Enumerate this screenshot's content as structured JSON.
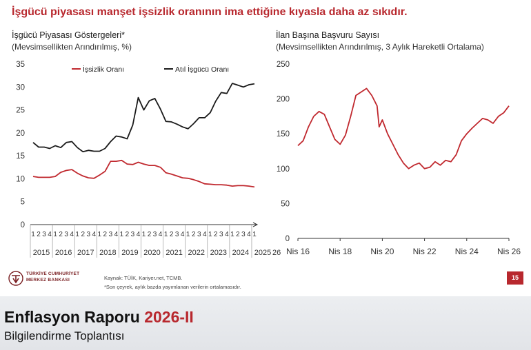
{
  "headline": "İşgücü piyasası manşet işsizlik oranının ima ettiğine kıyasla daha az sıkıdır.",
  "left_chart": {
    "title": "İşgücü Piyasası Göstergeleri*",
    "subtitle": "(Mevsimsellikten Arındırılmış, %)"
  },
  "right_chart": {
    "title": "İlan Başına Başvuru Sayısı",
    "subtitle": "(Mevsimsellikten Arındırılmış, 3 Aylık Hareketli Ortalama)"
  },
  "chart_data": [
    {
      "type": "line",
      "title": "İşgücü Piyasası Göstergeleri*",
      "subtitle": "(Mevsimsellikten Arındırılmış, %)",
      "ylim": [
        0,
        35
      ],
      "yticks": [
        0,
        5,
        10,
        15,
        20,
        25,
        30,
        35
      ],
      "quarter_labels": [
        "1",
        "2",
        "3",
        "4"
      ],
      "years": [
        "2015",
        "2016",
        "2017",
        "2018",
        "2019",
        "2020",
        "2021",
        "2022",
        "2023",
        "2024",
        "2025",
        "26"
      ],
      "last_year_quarters": 1,
      "legend_position": "top",
      "series": [
        {
          "name": "İşsizlik Oranı",
          "color": "#c0282e",
          "values": [
            10.5,
            10.3,
            10.3,
            10.3,
            10.5,
            11.4,
            11.8,
            12.0,
            11.2,
            10.6,
            10.2,
            10.1,
            10.8,
            11.6,
            13.8,
            13.8,
            14.0,
            13.2,
            13.1,
            13.6,
            13.2,
            12.9,
            12.9,
            12.5,
            11.3,
            11.0,
            10.6,
            10.2,
            10.1,
            9.8,
            9.4,
            8.9,
            8.8,
            8.7,
            8.7,
            8.6,
            8.4,
            8.5,
            8.5,
            8.4,
            8.2
          ]
        },
        {
          "name": "Atıl İşgücü Oranı",
          "color": "#1a1a1a",
          "values": [
            17.9,
            16.9,
            16.9,
            16.6,
            17.2,
            16.8,
            17.9,
            18.1,
            16.8,
            15.9,
            16.2,
            16.0,
            16.0,
            16.6,
            18.1,
            19.3,
            19.1,
            18.7,
            21.7,
            27.7,
            25.0,
            27.0,
            27.5,
            25.2,
            22.5,
            22.4,
            21.9,
            21.3,
            20.9,
            22.0,
            23.3,
            23.3,
            24.4,
            26.9,
            28.8,
            28.6,
            30.8,
            30.4,
            30.0,
            30.5,
            30.7
          ]
        }
      ]
    },
    {
      "type": "line",
      "title": "İlan Başına Başvuru Sayısı",
      "subtitle": "(Mevsimsellikten Arındırılmış, 3 Aylık Hareketli Ortalama)",
      "ylim": [
        0,
        250
      ],
      "yticks": [
        0,
        50,
        100,
        150,
        200,
        250
      ],
      "xlim": [
        2016.25,
        2026.25
      ],
      "xticks": [
        {
          "x": 2016.25,
          "label": "Nis 16"
        },
        {
          "x": 2018.25,
          "label": "Nis 18"
        },
        {
          "x": 2020.25,
          "label": "Nis 20"
        },
        {
          "x": 2022.25,
          "label": "Nis 22"
        },
        {
          "x": 2024.25,
          "label": "Nis 24"
        },
        {
          "x": 2026.25,
          "label": "Nis 26"
        }
      ],
      "series": [
        {
          "name": "",
          "color": "#c0282e",
          "x": [
            2016.25,
            2016.5,
            2016.75,
            2017.0,
            2017.25,
            2017.5,
            2017.75,
            2018.0,
            2018.25,
            2018.5,
            2018.75,
            2019.0,
            2019.25,
            2019.5,
            2019.75,
            2020.0,
            2020.1,
            2020.25,
            2020.5,
            2020.75,
            2021.0,
            2021.25,
            2021.5,
            2021.75,
            2022.0,
            2022.25,
            2022.5,
            2022.75,
            2023.0,
            2023.25,
            2023.5,
            2023.75,
            2024.0,
            2024.25,
            2024.5,
            2024.75,
            2025.0,
            2025.25,
            2025.5,
            2025.75,
            2026.0,
            2026.25
          ],
          "values": [
            133,
            140,
            160,
            175,
            182,
            178,
            160,
            142,
            135,
            148,
            175,
            205,
            210,
            215,
            205,
            190,
            160,
            170,
            150,
            135,
            120,
            108,
            100,
            105,
            108,
            100,
            102,
            110,
            105,
            112,
            110,
            120,
            140,
            150,
            158,
            165,
            172,
            170,
            165,
            175,
            180,
            190
          ]
        }
      ]
    }
  ],
  "sources": {
    "line1": "Kaynak: TÜİK, Kariyer.net, TCMB.",
    "line2": "*Son çeyrek, aylık bazda yayımlanan verilerin ortalamasıdır."
  },
  "logo": {
    "line1": "TÜRKİYE CUMHURİYET",
    "line2": "MERKEZ BANKASI",
    "mark": "TCMB",
    "icon": "tcmb-logo-icon"
  },
  "page_number": "15",
  "footer": {
    "title_main": "Enflasyon Raporu",
    "title_accent": "2026-II",
    "subtitle": "Bilgilendirme Toplantısı"
  },
  "colors": {
    "accent": "#b8282e",
    "footer_bg": "#e6e8eb"
  }
}
